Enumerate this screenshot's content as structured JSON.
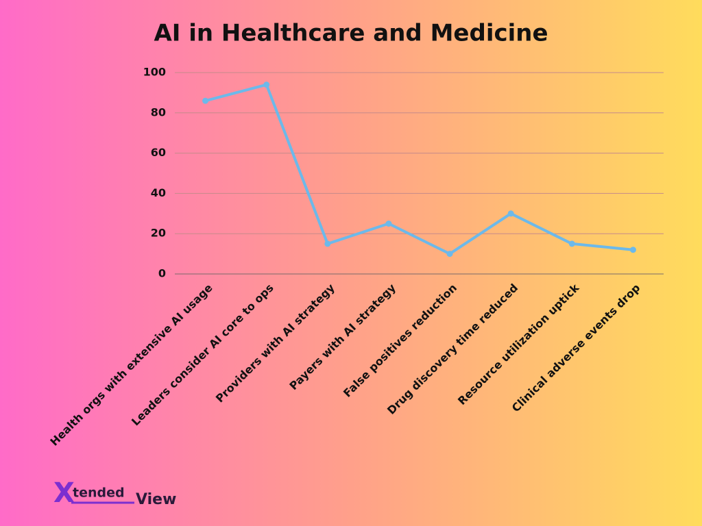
{
  "chart_data": {
    "type": "line",
    "title": "AI in Healthcare and Medicine",
    "categories": [
      "Health orgs with extensive AI usage",
      "Leaders consider AI core to ops",
      "Providers with AI strategy",
      "Payers with AI strategy",
      "False positives reduction",
      "Drug discovery time reduced",
      "Resource utilization uptick",
      "Clinical adverse events drop"
    ],
    "values": [
      86,
      94,
      15,
      25,
      10,
      30,
      15,
      12
    ],
    "color": "#6cb9ea",
    "ylim": [
      0,
      100
    ],
    "yticks": [
      0,
      20,
      40,
      60,
      80,
      100
    ],
    "grid": true
  },
  "logo": {
    "mark": "X",
    "part1": "tended",
    "part2": "View"
  }
}
